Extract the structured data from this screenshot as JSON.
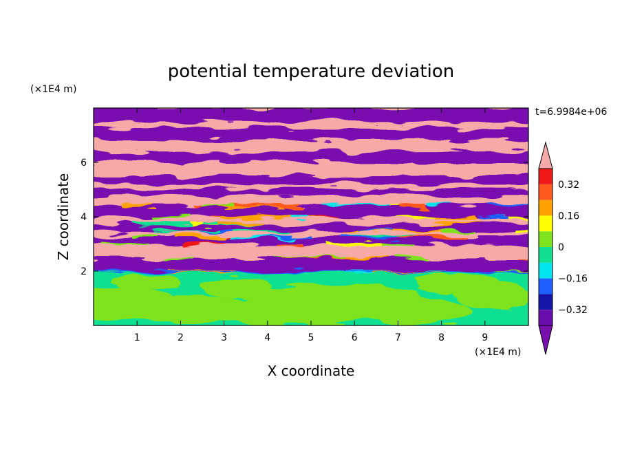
{
  "chart_data": {
    "type": "heatmap",
    "title": "potential temperature deviation",
    "xlabel": "X coordinate",
    "ylabel": "Z coordinate",
    "x_unit": "(×1E4 m)",
    "y_unit": "(×1E4 m)",
    "time_label": "t=6.9984e+06",
    "xlim": [
      0,
      10
    ],
    "ylim": [
      0,
      8
    ],
    "x_ticks": [
      1,
      2,
      3,
      4,
      5,
      6,
      7,
      8,
      9
    ],
    "y_ticks": [
      2,
      4,
      6
    ],
    "grid": false,
    "colorbar": {
      "position": "right",
      "extend": "both",
      "levels": [
        -0.4,
        -0.32,
        -0.24,
        -0.16,
        -0.08,
        0,
        0.08,
        0.16,
        0.24,
        0.32,
        0.4
      ],
      "tick_labels": [
        "0.32",
        "0.16",
        "0",
        "−0.16",
        "−0.32"
      ],
      "tick_values": [
        0.32,
        0.16,
        0,
        -0.16,
        -0.32
      ],
      "colors": [
        "#6a0dad",
        "#1515a8",
        "#1f5fff",
        "#00e4f0",
        "#10e090",
        "#7ee21e",
        "#ffff00",
        "#ffa200",
        "#ff5a1e",
        "#f01818",
        "#f5aaa8"
      ],
      "under_color": "#7a0fb0",
      "over_color": "#f5aaa8"
    }
  }
}
